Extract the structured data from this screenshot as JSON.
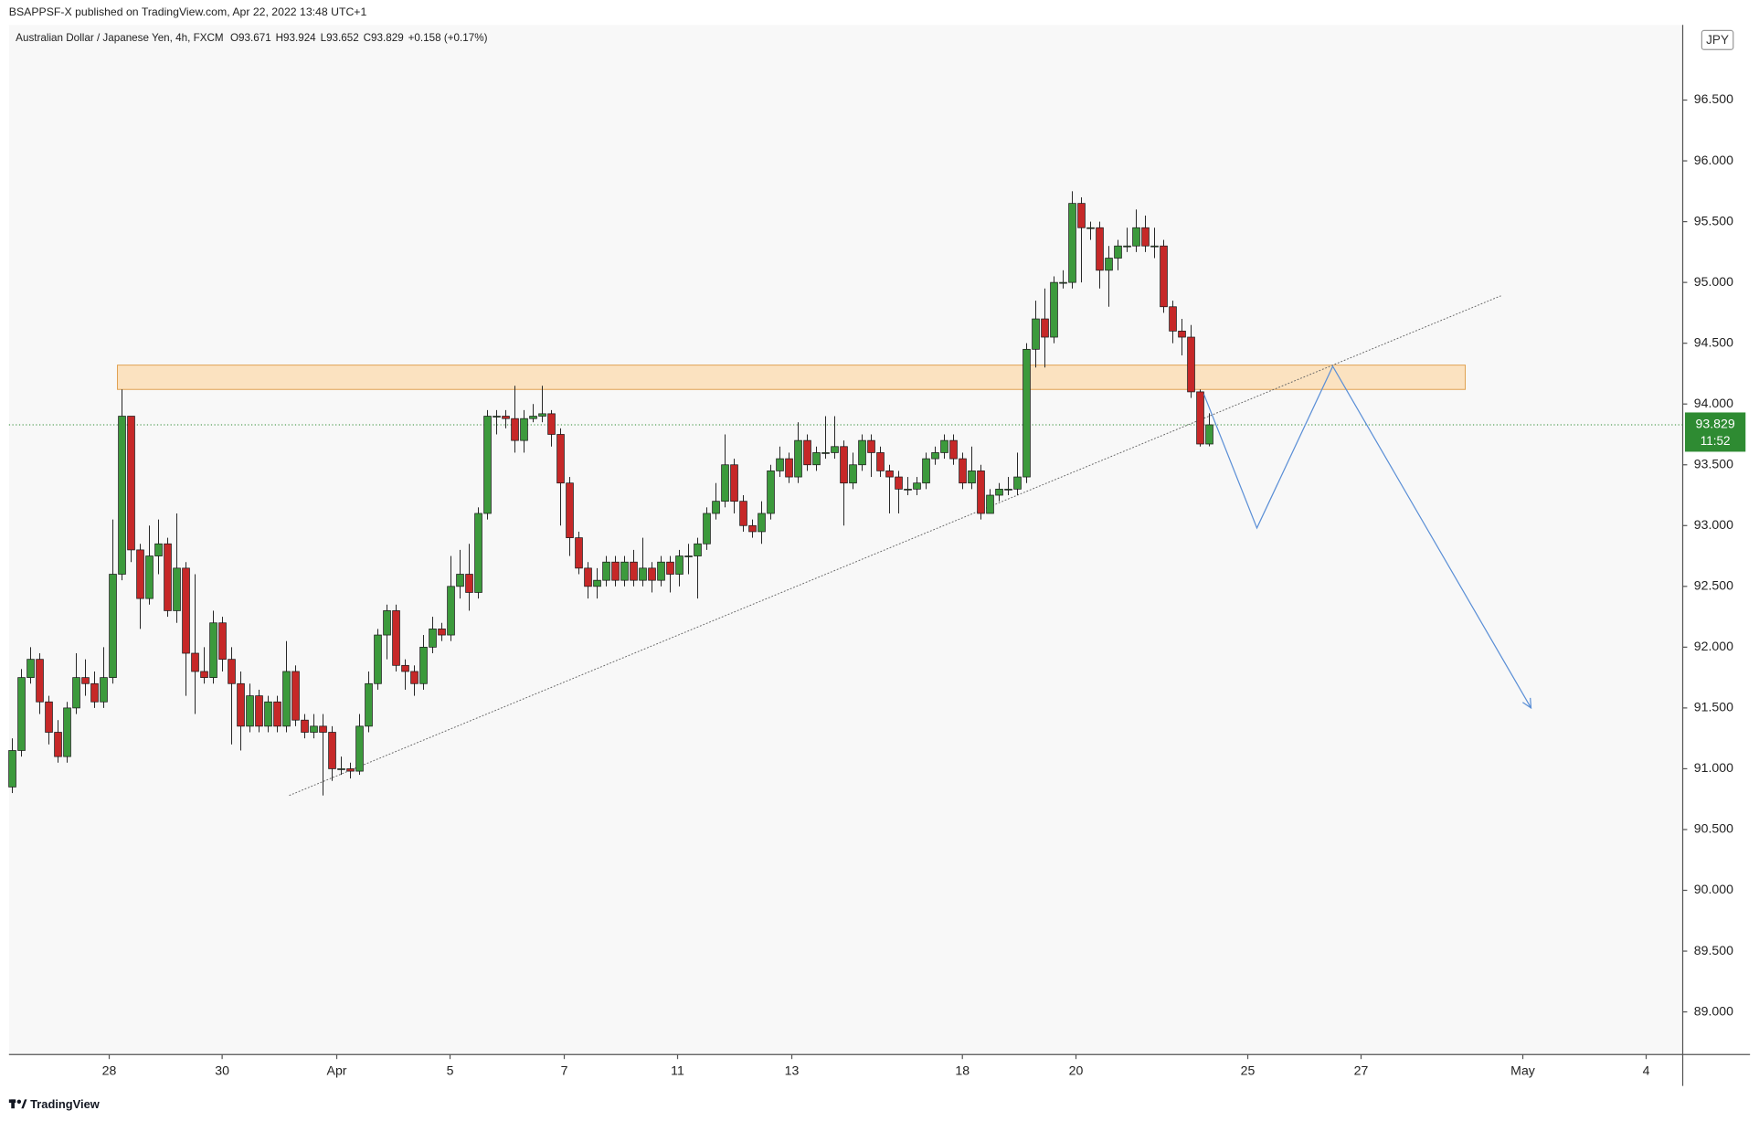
{
  "header": {
    "published": "BSAPPSF-X published on TradingView.com, Apr 22, 2022 13:48 UTC+1",
    "symbol": "Australian Dollar / Japanese Yen, 4h, FXCM",
    "legend": [
      "O93.671",
      "H93.924",
      "L93.652",
      "C93.829",
      "+0.158 (+0.17%)"
    ]
  },
  "footer": {
    "brand": "TradingView"
  },
  "chart_data": {
    "type": "candlestick",
    "currency": "JPY",
    "up_color": "#3c9a3c",
    "down_color": "#c62828",
    "grid": false,
    "ylim": [
      88.649,
      97.118
    ],
    "xlim": [
      -0.37,
      182.8
    ],
    "yticks": [
      {
        "value": 89,
        "label": "89.000"
      },
      {
        "value": 89.5,
        "label": "89.500"
      },
      {
        "value": 90,
        "label": "90.000"
      },
      {
        "value": 90.5,
        "label": "90.500"
      },
      {
        "value": 91,
        "label": "91.000"
      },
      {
        "value": 91.5,
        "label": "91.500"
      },
      {
        "value": 92,
        "label": "92.000"
      },
      {
        "value": 92.5,
        "label": "92.500"
      },
      {
        "value": 93,
        "label": "93.000"
      },
      {
        "value": 93.5,
        "label": "93.500"
      },
      {
        "value": 94,
        "label": "94.000"
      },
      {
        "value": 94.5,
        "label": "94.500"
      },
      {
        "value": 95,
        "label": "95.000"
      },
      {
        "value": 95.5,
        "label": "95.500"
      },
      {
        "value": 96,
        "label": "96.000"
      },
      {
        "value": 96.5,
        "label": "96.500"
      }
    ],
    "xticks": [
      {
        "value": 10.6,
        "label": "28"
      },
      {
        "value": 22.96,
        "label": "30"
      },
      {
        "value": 35.5,
        "label": "Apr"
      },
      {
        "value": 47.9,
        "label": "5"
      },
      {
        "value": 60.4,
        "label": "7"
      },
      {
        "value": 72.8,
        "label": "11"
      },
      {
        "value": 85.3,
        "label": "13"
      },
      {
        "value": 103.97,
        "label": "18"
      },
      {
        "value": 116.4,
        "label": "20"
      },
      {
        "value": 135.2,
        "label": "25"
      },
      {
        "value": 147.6,
        "label": "27"
      },
      {
        "value": 165.3,
        "label": "May"
      },
      {
        "value": 178.8,
        "label": "4"
      }
    ],
    "open": [
      90.85,
      91.15,
      91.75,
      91.9,
      91.55,
      91.3,
      91.1,
      91.5,
      91.75,
      91.7,
      91.55,
      91.75,
      92.6,
      93.9,
      92.8,
      92.4,
      92.75,
      92.85,
      92.3,
      92.65,
      91.95,
      91.8,
      91.75,
      92.2,
      91.9,
      91.7,
      91.35,
      91.6,
      91.35,
      91.55,
      91.35,
      91.8,
      91.4,
      91.3,
      91.35,
      91.3,
      91.0,
      91.0,
      90.98,
      91.35,
      91.7,
      92.1,
      92.3,
      91.85,
      91.8,
      91.7,
      92.0,
      92.15,
      92.1,
      92.5,
      92.6,
      92.45,
      93.1,
      93.9,
      93.9,
      93.88,
      93.7,
      93.88,
      93.9,
      93.92,
      93.75,
      93.35,
      92.9,
      92.65,
      92.5,
      92.55,
      92.7,
      92.55,
      92.7,
      92.55,
      92.65,
      92.55,
      92.7,
      92.6,
      92.75,
      92.75,
      92.85,
      93.1,
      93.2,
      93.5,
      93.2,
      93.0,
      92.95,
      93.1,
      93.45,
      93.55,
      93.4,
      93.7,
      93.5,
      93.6,
      93.6,
      93.65,
      93.35,
      93.5,
      93.7,
      93.6,
      93.45,
      93.4,
      93.3,
      93.3,
      93.35,
      93.55,
      93.6,
      93.7,
      93.55,
      93.35,
      93.45,
      93.1,
      93.25,
      93.3,
      93.3,
      93.4,
      94.45,
      94.7,
      94.55,
      95.0,
      95.0,
      95.65,
      95.45,
      95.45,
      95.1,
      95.2,
      95.3,
      95.3,
      95.45,
      95.3,
      95.3,
      94.8,
      94.6,
      94.55,
      94.1,
      93.671
    ],
    "high": [
      91.25,
      91.82,
      92.0,
      91.95,
      91.6,
      91.4,
      91.55,
      91.95,
      91.9,
      91.8,
      92.0,
      93.05,
      94.12,
      93.9,
      92.85,
      93.0,
      93.05,
      92.9,
      93.1,
      92.7,
      92.6,
      92.0,
      92.3,
      92.25,
      92.0,
      91.8,
      91.7,
      91.65,
      91.6,
      91.6,
      92.05,
      91.85,
      91.45,
      91.45,
      91.45,
      91.35,
      91.1,
      91.05,
      91.45,
      91.8,
      92.15,
      92.35,
      92.35,
      91.9,
      91.85,
      92.1,
      92.25,
      92.2,
      92.75,
      92.8,
      92.85,
      93.15,
      93.95,
      93.95,
      93.95,
      94.15,
      93.95,
      94.0,
      94.15,
      93.95,
      93.8,
      93.4,
      92.95,
      92.7,
      92.65,
      92.75,
      92.75,
      92.75,
      92.8,
      92.9,
      92.7,
      92.75,
      92.75,
      92.8,
      92.85,
      92.9,
      93.15,
      93.35,
      93.75,
      93.55,
      93.25,
      93.05,
      93.2,
      93.5,
      93.65,
      93.6,
      93.85,
      93.75,
      93.65,
      93.9,
      93.9,
      93.7,
      93.6,
      93.75,
      93.75,
      93.65,
      93.5,
      93.45,
      93.4,
      93.4,
      93.6,
      93.65,
      93.75,
      93.75,
      93.6,
      93.65,
      93.5,
      93.3,
      93.35,
      93.4,
      93.6,
      94.5,
      94.85,
      94.95,
      95.05,
      95.1,
      95.75,
      95.7,
      95.5,
      95.5,
      95.3,
      95.35,
      95.45,
      95.6,
      95.55,
      95.45,
      95.35,
      94.85,
      94.7,
      94.65,
      94.12,
      93.924
    ],
    "low": [
      90.8,
      91.1,
      91.7,
      91.45,
      91.2,
      91.05,
      91.05,
      91.45,
      91.6,
      91.5,
      91.5,
      91.7,
      92.55,
      92.7,
      92.15,
      92.35,
      92.6,
      92.25,
      92.2,
      91.6,
      91.45,
      91.7,
      91.7,
      91.8,
      91.2,
      91.15,
      91.3,
      91.3,
      91.3,
      91.3,
      91.3,
      91.35,
      91.25,
      91.25,
      90.78,
      90.9,
      90.95,
      90.92,
      90.95,
      91.3,
      91.65,
      91.9,
      91.8,
      91.65,
      91.6,
      91.65,
      91.95,
      92.05,
      92.05,
      92.4,
      92.3,
      92.4,
      93.05,
      93.75,
      93.8,
      93.6,
      93.6,
      93.85,
      93.85,
      93.65,
      93.0,
      92.75,
      92.6,
      92.4,
      92.4,
      92.5,
      92.5,
      92.5,
      92.5,
      92.5,
      92.45,
      92.5,
      92.45,
      92.5,
      92.6,
      92.4,
      92.8,
      93.05,
      93.15,
      93.1,
      92.95,
      92.9,
      92.85,
      93.05,
      93.4,
      93.35,
      93.35,
      93.45,
      93.45,
      93.55,
      93.55,
      93.0,
      93.3,
      93.45,
      93.4,
      93.4,
      93.1,
      93.1,
      93.25,
      93.25,
      93.3,
      93.5,
      93.55,
      93.5,
      93.3,
      93.3,
      93.05,
      93.1,
      93.2,
      93.25,
      93.25,
      93.35,
      94.3,
      94.3,
      94.5,
      94.95,
      94.95,
      95.0,
      95.35,
      94.95,
      94.8,
      95.1,
      95.25,
      95.25,
      95.25,
      95.2,
      94.75,
      94.5,
      94.4,
      94.05,
      93.65,
      93.652
    ],
    "close": [
      91.15,
      91.75,
      91.9,
      91.55,
      91.3,
      91.1,
      91.5,
      91.75,
      91.7,
      91.55,
      91.75,
      92.6,
      93.9,
      92.8,
      92.4,
      92.75,
      92.85,
      92.3,
      92.65,
      91.95,
      91.8,
      91.75,
      92.2,
      91.9,
      91.7,
      91.35,
      91.6,
      91.35,
      91.55,
      91.35,
      91.8,
      91.4,
      91.3,
      91.35,
      91.3,
      91.0,
      91.0,
      90.98,
      91.35,
      91.7,
      92.1,
      92.3,
      91.85,
      91.8,
      91.7,
      92.0,
      92.15,
      92.1,
      92.5,
      92.6,
      92.45,
      93.1,
      93.9,
      93.9,
      93.88,
      93.7,
      93.88,
      93.9,
      93.92,
      93.75,
      93.35,
      92.9,
      92.65,
      92.5,
      92.55,
      92.7,
      92.55,
      92.7,
      92.55,
      92.65,
      92.55,
      92.7,
      92.6,
      92.75,
      92.75,
      92.85,
      93.1,
      93.2,
      93.5,
      93.2,
      93.0,
      92.95,
      93.1,
      93.45,
      93.55,
      93.4,
      93.7,
      93.5,
      93.6,
      93.6,
      93.65,
      93.35,
      93.5,
      93.7,
      93.6,
      93.45,
      93.4,
      93.3,
      93.3,
      93.35,
      93.55,
      93.6,
      93.7,
      93.55,
      93.35,
      93.45,
      93.1,
      93.25,
      93.3,
      93.3,
      93.4,
      94.45,
      94.7,
      94.55,
      95.0,
      95.0,
      95.65,
      95.45,
      95.45,
      95.1,
      95.2,
      95.3,
      95.3,
      95.45,
      95.3,
      95.3,
      94.8,
      94.6,
      94.55,
      94.1,
      93.671,
      93.829
    ],
    "last_price": 93.829,
    "last_price_label": "93.829",
    "countdown": "11:52",
    "last_price_color": "#2e8b32",
    "zone": {
      "x": [
        11.5,
        159.0
      ],
      "y": [
        94.12,
        94.32
      ],
      "color": "#fbe2c0",
      "border": "#e0a050"
    },
    "trendline": {
      "x": [
        30.3,
        162.9
      ],
      "y": [
        90.78,
        94.89
      ],
      "color": "#666666"
    },
    "projection": {
      "x": [
        130.4,
        136.2,
        144.5,
        166.2
      ],
      "y": [
        94.08,
        92.98,
        94.31,
        91.5
      ],
      "color": "#5b8fd6"
    }
  }
}
